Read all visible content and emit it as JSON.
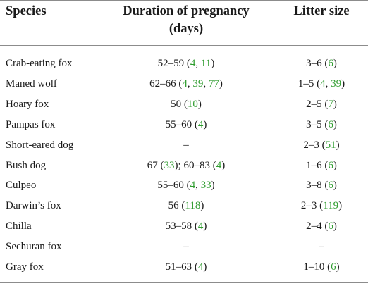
{
  "headers": {
    "species": "Species",
    "pregnancy_line1": "Duration of pregnancy",
    "pregnancy_line2": "(days)",
    "litter": "Litter size"
  },
  "reference_color": "#2e9c2e",
  "rows": [
    {
      "species": "Crab-eating fox",
      "preg": [
        {
          "t": "52–59 ("
        },
        {
          "t": "4",
          "ref": true
        },
        {
          "t": ", "
        },
        {
          "t": "11",
          "ref": true
        },
        {
          "t": ")"
        }
      ],
      "litter": [
        {
          "t": "3–6 ("
        },
        {
          "t": "6",
          "ref": true
        },
        {
          "t": ")"
        }
      ]
    },
    {
      "species": "Maned wolf",
      "preg": [
        {
          "t": "62–66 ("
        },
        {
          "t": "4",
          "ref": true
        },
        {
          "t": ", "
        },
        {
          "t": "39",
          "ref": true
        },
        {
          "t": ", "
        },
        {
          "t": "77",
          "ref": true
        },
        {
          "t": ")"
        }
      ],
      "litter": [
        {
          "t": "1–5 ("
        },
        {
          "t": "4",
          "ref": true
        },
        {
          "t": ", "
        },
        {
          "t": "39",
          "ref": true
        },
        {
          "t": ")"
        }
      ]
    },
    {
      "species": "Hoary fox",
      "preg": [
        {
          "t": "50 ("
        },
        {
          "t": "10",
          "ref": true
        },
        {
          "t": ")"
        }
      ],
      "litter": [
        {
          "t": "2–5 ("
        },
        {
          "t": "7",
          "ref": true
        },
        {
          "t": ")"
        }
      ]
    },
    {
      "species": "Pampas fox",
      "preg": [
        {
          "t": "55–60 ("
        },
        {
          "t": "4",
          "ref": true
        },
        {
          "t": ")"
        }
      ],
      "litter": [
        {
          "t": "3–5 ("
        },
        {
          "t": "6",
          "ref": true
        },
        {
          "t": ")"
        }
      ]
    },
    {
      "species": "Short-eared dog",
      "preg": [
        {
          "t": "–"
        }
      ],
      "litter": [
        {
          "t": "2–3 ("
        },
        {
          "t": "51",
          "ref": true
        },
        {
          "t": ")"
        }
      ]
    },
    {
      "species": "Bush dog",
      "preg": [
        {
          "t": "67 ("
        },
        {
          "t": "33",
          "ref": true
        },
        {
          "t": "); 60–83 ("
        },
        {
          "t": "4",
          "ref": true
        },
        {
          "t": ")"
        }
      ],
      "litter": [
        {
          "t": "1–6 ("
        },
        {
          "t": "6",
          "ref": true
        },
        {
          "t": ")"
        }
      ]
    },
    {
      "species": "Culpeo",
      "preg": [
        {
          "t": "55–60 ("
        },
        {
          "t": "4",
          "ref": true
        },
        {
          "t": ", "
        },
        {
          "t": "33",
          "ref": true
        },
        {
          "t": ")"
        }
      ],
      "litter": [
        {
          "t": "3–8 ("
        },
        {
          "t": "6",
          "ref": true
        },
        {
          "t": ")"
        }
      ]
    },
    {
      "species": "Darwin’s fox",
      "preg": [
        {
          "t": "56 ("
        },
        {
          "t": "118",
          "ref": true
        },
        {
          "t": ")"
        }
      ],
      "litter": [
        {
          "t": "2–3 ("
        },
        {
          "t": "119",
          "ref": true
        },
        {
          "t": ")"
        }
      ]
    },
    {
      "species": "Chilla",
      "preg": [
        {
          "t": "53–58 ("
        },
        {
          "t": "4",
          "ref": true
        },
        {
          "t": ")"
        }
      ],
      "litter": [
        {
          "t": "2–4 ("
        },
        {
          "t": "6",
          "ref": true
        },
        {
          "t": ")"
        }
      ]
    },
    {
      "species": "Sechuran fox",
      "preg": [
        {
          "t": "–"
        }
      ],
      "litter": [
        {
          "t": "–"
        }
      ]
    },
    {
      "species": "Gray fox",
      "preg": [
        {
          "t": "51–63 ("
        },
        {
          "t": "4",
          "ref": true
        },
        {
          "t": ")"
        }
      ],
      "litter": [
        {
          "t": "1–10 ("
        },
        {
          "t": "6",
          "ref": true
        },
        {
          "t": ")"
        }
      ]
    }
  ]
}
